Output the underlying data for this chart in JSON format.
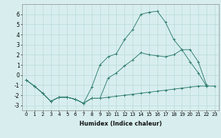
{
  "xlabel": "Humidex (Indice chaleur)",
  "x_values": [
    0,
    1,
    2,
    3,
    4,
    5,
    6,
    7,
    8,
    9,
    10,
    11,
    12,
    13,
    14,
    15,
    16,
    17,
    18,
    19,
    20,
    21,
    22,
    23
  ],
  "line1": [
    -0.5,
    -1.1,
    -1.8,
    -2.6,
    -2.2,
    -2.2,
    -2.4,
    -2.8,
    -2.3,
    -2.3,
    -2.2,
    -2.1,
    -2.0,
    -1.9,
    -1.8,
    -1.7,
    -1.6,
    -1.5,
    -1.4,
    -1.3,
    -1.2,
    -1.1,
    -1.1,
    -1.1
  ],
  "line2": [
    -0.5,
    -1.1,
    -1.8,
    -2.6,
    -2.2,
    -2.2,
    -2.4,
    -2.8,
    -1.2,
    1.0,
    1.8,
    2.1,
    3.5,
    4.5,
    6.0,
    6.2,
    6.3,
    5.2,
    3.5,
    2.5,
    1.3,
    0.2,
    -1.1,
    null
  ],
  "line3": [
    -0.5,
    -1.1,
    -1.8,
    -2.6,
    -2.2,
    -2.2,
    -2.4,
    -2.8,
    -2.3,
    -2.3,
    -0.3,
    0.2,
    0.9,
    1.5,
    2.2,
    2.0,
    1.9,
    1.8,
    2.0,
    2.5,
    2.5,
    1.3,
    -1.0,
    null
  ],
  "color": "#2e7d6e",
  "bg_color": "#d8eeee",
  "grid_color": "#b8d8d8",
  "ylim": [
    -3.5,
    7
  ],
  "xlim": [
    -0.5,
    23.5
  ],
  "yticks": [
    -3,
    -2,
    -1,
    0,
    1,
    2,
    3,
    4,
    5,
    6
  ],
  "xticks": [
    0,
    1,
    2,
    3,
    4,
    5,
    6,
    7,
    8,
    9,
    10,
    11,
    12,
    13,
    14,
    15,
    16,
    17,
    18,
    19,
    20,
    21,
    22,
    23
  ],
  "xlabel_fontsize": 6.0,
  "tick_fontsize_x": 5.0,
  "tick_fontsize_y": 5.5
}
